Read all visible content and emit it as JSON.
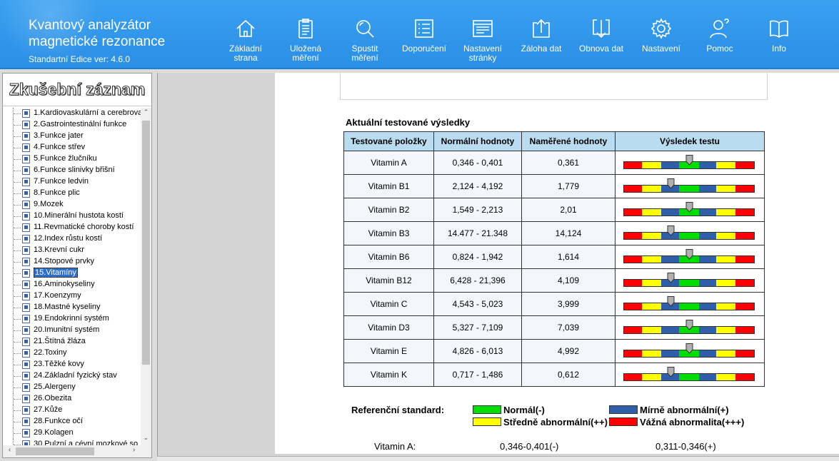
{
  "header": {
    "title_line1": "Kvantový analyzátor",
    "title_line2": "magnetické rezonance",
    "edition": "Standartní Edice ver: 4.6.0"
  },
  "nav": [
    {
      "label": "Základní\nstrana",
      "icon": "home-icon"
    },
    {
      "label": "Uložená\nměření",
      "icon": "clipboard-icon"
    },
    {
      "label": "Spustit\nměření",
      "icon": "search-icon"
    },
    {
      "label": "Doporučení",
      "icon": "list-icon"
    },
    {
      "label": "Nastavení\nstránky",
      "icon": "page-settings-icon"
    },
    {
      "label": "Záloha dat",
      "icon": "upload-icon"
    },
    {
      "label": "Obnova dat",
      "icon": "download-icon"
    },
    {
      "label": "Nastavení",
      "icon": "gear-icon"
    },
    {
      "label": "Pomoc",
      "icon": "help-user-icon"
    },
    {
      "label": "Info",
      "icon": "book-icon"
    }
  ],
  "sidebar": {
    "title": "Zkušební záznam",
    "items": [
      "1.Kardiovaskulární a cerebrova",
      "2.Gastrointestinální funkce",
      "3.Funkce jater",
      "4.Funkce střev",
      "5.Funkce žlučníku",
      "6.Funkce slinivky břišní",
      "7.Funkce ledvin",
      "8.Funkce plic",
      "9.Mozek",
      "10.Minerální hustota kostí",
      "11.Revmatické choroby kostí",
      "12.Index růstu kostí",
      "13.Krevní cukr",
      "14.Stopové prvky",
      "15.Vitamíny",
      "16.Aminokyseliny",
      "17.Koenzymy",
      "18.Mastné kyseliny",
      "19.Endokrinní systém",
      "20.Imunitní systém",
      "21.Štítná žláza",
      "22.Toxiny",
      "23.Těžké kovy",
      "24.Základní fyzický stav",
      "25.Alergeny",
      "26.Obezita",
      "27.Kůže",
      "28.Funkce očí",
      "29.Kolagen",
      "30.Pulzní a cévní mozkové so"
    ],
    "selected_index": 14
  },
  "report": {
    "section_title": "Aktuální testované výsledky",
    "columns": [
      "Testované položky",
      "Normální hodnoty",
      "Naměřené hodnoty",
      "Výsledek testu"
    ],
    "rows": [
      {
        "item": "Vitamin A",
        "normal": "0,346 - 0,401",
        "measured": "0,361",
        "level": 0.5
      },
      {
        "item": "Vitamin B1",
        "normal": "2,124 - 4,192",
        "measured": "1,779",
        "level": 0.36
      },
      {
        "item": "Vitamin B2",
        "normal": "1,549 - 2,213",
        "measured": "2,01",
        "level": 0.5
      },
      {
        "item": "Vitamin B3",
        "normal": "14.477 - 21.348",
        "measured": "14,124",
        "level": 0.36
      },
      {
        "item": "Vitamin B6",
        "normal": "0,824 - 1,942",
        "measured": "1,614",
        "level": 0.5
      },
      {
        "item": "Vitamin B12",
        "normal": "6,428 - 21,396",
        "measured": "4,109",
        "level": 0.36
      },
      {
        "item": "Vitamin C",
        "normal": "4,543 - 5,023",
        "measured": "3,999",
        "level": 0.36
      },
      {
        "item": "Vitamin D3",
        "normal": "5,327 - 7,109",
        "measured": "7,039",
        "level": 0.5
      },
      {
        "item": "Vitamin E",
        "normal": "4,826 - 6,013",
        "measured": "4,992",
        "level": 0.5
      },
      {
        "item": "Vitamin K",
        "normal": "0,717 - 1,486",
        "measured": "0,612",
        "level": 0.36
      }
    ],
    "gauge_colors": [
      "#ff0000",
      "#ffff00",
      "#2f5fa8",
      "#00dd00",
      "#2f5fa8",
      "#ffff00",
      "#ff0000"
    ],
    "legend": {
      "title": "Referenční standard:",
      "items": [
        {
          "label": "Normál(-)",
          "color": "#00dd00"
        },
        {
          "label": "Mírně abnormální(+)",
          "color": "#2f5fa8"
        },
        {
          "label": "Středně abnormální(++)",
          "color": "#ffff00"
        },
        {
          "label": "Vážná abnormalita(+++)",
          "color": "#ff0000"
        }
      ]
    },
    "detail": {
      "name": "Vitamin A:",
      "normal": "0,346-0,401(-)",
      "mild": "0,311-0,346(+)"
    }
  }
}
